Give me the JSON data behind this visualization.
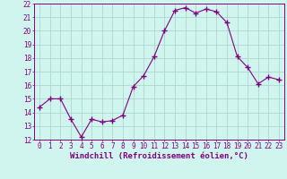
{
  "x": [
    0,
    1,
    2,
    3,
    4,
    5,
    6,
    7,
    8,
    9,
    10,
    11,
    12,
    13,
    14,
    15,
    16,
    17,
    18,
    19,
    20,
    21,
    22,
    23
  ],
  "y": [
    14.4,
    15.0,
    15.0,
    13.5,
    12.2,
    13.5,
    13.3,
    13.4,
    13.8,
    15.9,
    16.7,
    18.1,
    20.0,
    21.5,
    21.7,
    21.3,
    21.6,
    21.4,
    20.6,
    18.1,
    17.3,
    16.1,
    16.6,
    16.4
  ],
  "line_color": "#800080",
  "marker": "+",
  "marker_size": 4,
  "bg_color": "#cff5ee",
  "grid_color": "#aad8cc",
  "xlabel": "Windchill (Refroidissement éolien,°C)",
  "xlim": [
    -0.5,
    23.5
  ],
  "ylim": [
    12,
    22
  ],
  "yticks": [
    12,
    13,
    14,
    15,
    16,
    17,
    18,
    19,
    20,
    21,
    22
  ],
  "xticks": [
    0,
    1,
    2,
    3,
    4,
    5,
    6,
    7,
    8,
    9,
    10,
    11,
    12,
    13,
    14,
    15,
    16,
    17,
    18,
    19,
    20,
    21,
    22,
    23
  ],
  "tick_fontsize": 5.5,
  "xlabel_fontsize": 6.5,
  "label_color": "#800080",
  "spine_color": "#800080"
}
